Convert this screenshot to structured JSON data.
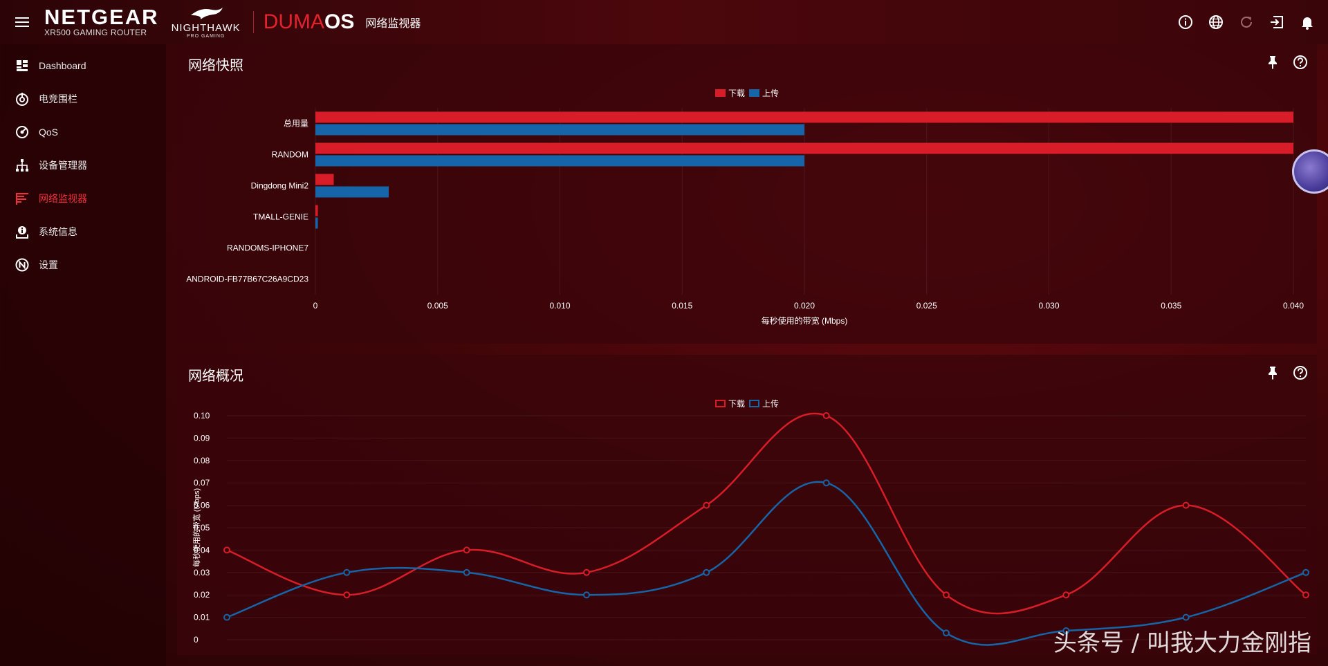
{
  "header": {
    "brand": "NETGEAR",
    "model": "XR500 GAMING ROUTER",
    "sub_brand": "NIGHTHAWK",
    "sub_brand_tag": "PRO GAMING",
    "os_part1": "DUMA",
    "os_part2": "OS",
    "page_title": "网络监视器",
    "icons": [
      "info-icon",
      "globe-icon",
      "refresh-icon",
      "logout-icon",
      "bell-icon"
    ]
  },
  "sidebar": {
    "items": [
      {
        "label": "Dashboard",
        "icon": "dashboard-icon",
        "active": false
      },
      {
        "label": "电竞围栏",
        "icon": "geofilter-icon",
        "active": false
      },
      {
        "label": "QoS",
        "icon": "qos-icon",
        "active": false
      },
      {
        "label": "设备管理器",
        "icon": "device-manager-icon",
        "active": false
      },
      {
        "label": "网络监视器",
        "icon": "network-monitor-icon",
        "active": true
      },
      {
        "label": "系统信息",
        "icon": "system-info-icon",
        "active": false
      },
      {
        "label": "设置",
        "icon": "settings-icon",
        "active": false
      }
    ]
  },
  "colors": {
    "accent": "#e4222d",
    "download": "#d81d28",
    "upload": "#1565a8"
  },
  "panel1": {
    "title": "网络快照",
    "legend": {
      "download": "下载",
      "upload": "上传"
    }
  },
  "panel2": {
    "title": "网络概况",
    "legend": {
      "download": "下载",
      "upload": "上传"
    }
  },
  "watermark": "头条号 / 叫我大力金刚指",
  "chart_data": [
    {
      "type": "bar",
      "orientation": "horizontal",
      "categories": [
        "总用量",
        "RANDOM",
        "Dingdong Mini2",
        "TMALL-GENIE",
        "RANDOMS-IPHONE7",
        "ANDROID-FB77B67C26A9CD23"
      ],
      "series": [
        {
          "name": "下载",
          "values": [
            0.04,
            0.04,
            0.00075,
            0.0001,
            0,
            0
          ]
        },
        {
          "name": "上传",
          "values": [
            0.02,
            0.02,
            0.003,
            0.0001,
            0,
            0
          ]
        }
      ],
      "xlabel": "每秒使用的带宽 (Mbps)",
      "xlim": [
        0,
        0.04
      ],
      "xticks": [
        "0",
        "0.005",
        "0.010",
        "0.015",
        "0.020",
        "0.025",
        "0.030",
        "0.035",
        "0.040"
      ],
      "legend": "top-center",
      "grid": true
    },
    {
      "type": "line",
      "x": [
        0,
        1,
        2,
        3,
        4,
        5,
        6,
        7,
        8,
        9
      ],
      "series": [
        {
          "name": "下载",
          "values": [
            0.04,
            0.02,
            0.04,
            0.03,
            0.06,
            0.1,
            0.02,
            0.02,
            0.06,
            0.02
          ]
        },
        {
          "name": "上传",
          "values": [
            0.01,
            0.03,
            0.03,
            0.02,
            0.03,
            0.07,
            0.003,
            0.004,
            0.01,
            0.03
          ]
        }
      ],
      "ylabel": "每秒使用的带宽 (Mbps)",
      "ylim": [
        0,
        0.1
      ],
      "yticks": [
        "0",
        "0.01",
        "0.02",
        "0.03",
        "0.04",
        "0.05",
        "0.06",
        "0.07",
        "0.08",
        "0.09",
        "0.10"
      ],
      "legend": "top-center",
      "grid": true
    }
  ]
}
